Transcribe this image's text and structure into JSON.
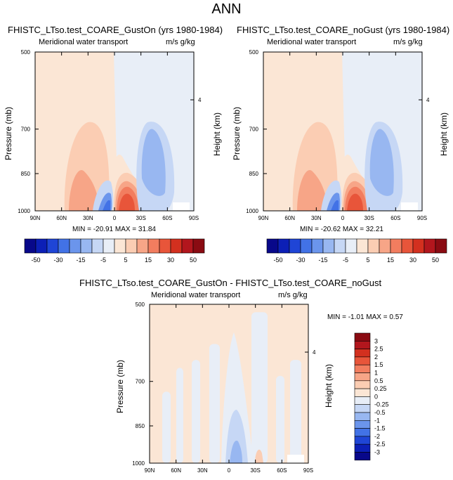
{
  "main_title": "ANN",
  "colors": {
    "levels11": [
      "#08088a",
      "#0c1fb6",
      "#1f45d6",
      "#4272e6",
      "#6b95ec",
      "#98b7f1",
      "#c6d7f5",
      "#e8eef7",
      "#fbe6d5",
      "#fbcdb3",
      "#f7a587",
      "#f27d5f",
      "#e8553a",
      "#d3301f",
      "#b2161d",
      "#8a0b12"
    ],
    "diff_levels": [
      "#08088a",
      "#0c1fb6",
      "#1f45d6",
      "#4272e6",
      "#6b95ec",
      "#98b7f1",
      "#c6d7f5",
      "#e8eef7",
      "#fbe6d5",
      "#fbcdb3",
      "#f7a587",
      "#f27d5f",
      "#e8553a",
      "#d3301f",
      "#b2161d",
      "#8a0b12"
    ]
  },
  "panels": [
    {
      "title": "FHISTC_LTso.test_COARE_GustOn (yrs 1980-1984)",
      "left_label": "Meridional water transport",
      "right_label": "m/s g/kg",
      "ylabel": "Pressure (mb)",
      "y2label": "Height (km)",
      "minmax": "MIN = -20.91  MAX =  31.84"
    },
    {
      "title": "FHISTC_LTso.test_COARE_noGust (yrs 1980-1984)",
      "left_label": "Meridional water transport",
      "right_label": "m/s g/kg",
      "ylabel": "Pressure (mb)",
      "y2label": "Height (km)",
      "minmax": "MIN = -20.62  MAX =  32.21"
    },
    {
      "title": "FHISTC_LTso.test_COARE_GustOn - FHISTC_LTso.test_COARE_noGust",
      "left_label": "Meridional water transport",
      "right_label": "m/s g/kg",
      "ylabel": "Pressure (mb)",
      "y2label": "Height (km)",
      "minmax": "MIN = -1.01  MAX =   0.57"
    }
  ],
  "colorbar_top_labels": [
    "-50",
    "-30",
    "-15",
    "-5",
    "5",
    "15",
    "30",
    "50"
  ],
  "colorbar_diff_labels": [
    "3",
    "2.5",
    "2",
    "1.5",
    "1",
    "0.5",
    "0.25",
    "0",
    "-0.25",
    "-0.5",
    "-1",
    "-1.5",
    "-2",
    "-2.5",
    "-3"
  ],
  "chart_data": [
    {
      "type": "heatmap",
      "title": "FHISTC_LTso.test_COARE_GustOn (yrs 1980-1984)",
      "variable": "Meridional water transport",
      "units": "m/s g/kg",
      "x": [
        "90N",
        "60N",
        "30N",
        "0",
        "30S",
        "60S",
        "90S"
      ],
      "y": [
        500,
        700,
        850,
        1000
      ],
      "y2_ticks": [
        "4"
      ],
      "xlabel": "",
      "ylabel": "Pressure (mb)",
      "y2label": "Height (km)",
      "min": -20.91,
      "max": 31.84,
      "contour_levels": [
        -50,
        -40,
        -30,
        -20,
        -15,
        -10,
        -5,
        0,
        5,
        10,
        15,
        20,
        30,
        40,
        50
      ],
      "notable_regions": [
        {
          "lat_range": [
            "90N",
            "10S"
          ],
          "plev_range": [
            500,
            1000
          ],
          "sign": "positive",
          "magnitude": "weak"
        },
        {
          "lat_range": [
            "40N",
            "20N"
          ],
          "plev_range": [
            780,
            1000
          ],
          "sign": "positive",
          "magnitude": "moderate"
        },
        {
          "lat_range": [
            "0",
            "30S"
          ],
          "plev_range": [
            880,
            1000
          ],
          "sign": "positive",
          "magnitude": "strong"
        },
        {
          "lat_range": [
            "20N",
            "0"
          ],
          "plev_range": [
            900,
            1000
          ],
          "sign": "negative",
          "magnitude": "moderate"
        },
        {
          "lat_range": [
            "20S",
            "60S"
          ],
          "plev_range": [
            700,
            1000
          ],
          "sign": "negative",
          "magnitude": "moderate"
        }
      ]
    },
    {
      "type": "heatmap",
      "title": "FHISTC_LTso.test_COARE_noGust (yrs 1980-1984)",
      "variable": "Meridional water transport",
      "units": "m/s g/kg",
      "x": [
        "90N",
        "60N",
        "30N",
        "0",
        "30S",
        "60S",
        "90S"
      ],
      "y": [
        500,
        700,
        850,
        1000
      ],
      "y2_ticks": [
        "4"
      ],
      "xlabel": "",
      "ylabel": "Pressure (mb)",
      "y2label": "Height (km)",
      "min": -20.62,
      "max": 32.21,
      "contour_levels": [
        -50,
        -40,
        -30,
        -20,
        -15,
        -10,
        -5,
        0,
        5,
        10,
        15,
        20,
        30,
        40,
        50
      ]
    },
    {
      "type": "heatmap",
      "title": "FHISTC_LTso.test_COARE_GustOn - FHISTC_LTso.test_COARE_noGust",
      "variable": "Meridional water transport",
      "units": "m/s g/kg",
      "x": [
        "90N",
        "60N",
        "30N",
        "0",
        "30S",
        "60S",
        "90S"
      ],
      "y": [
        500,
        700,
        850,
        1000
      ],
      "y2_ticks": [
        "4"
      ],
      "xlabel": "",
      "ylabel": "Pressure (mb)",
      "y2label": "Height (km)",
      "min": -1.01,
      "max": 0.57,
      "contour_levels": [
        -3,
        -2.5,
        -2,
        -1.5,
        -1,
        -0.5,
        -0.25,
        0,
        0.25,
        0.5,
        1,
        1.5,
        2,
        2.5,
        3
      ]
    }
  ]
}
